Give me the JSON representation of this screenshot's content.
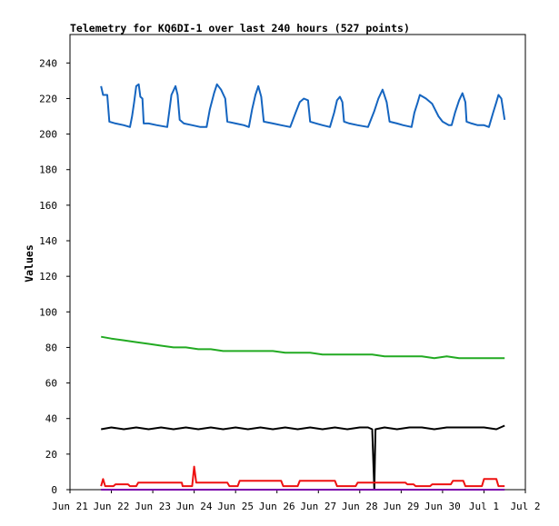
{
  "chart_data": {
    "type": "line",
    "title": "Telemetry for KQ6DI-1 over last 240 hours (527 points)",
    "xlabel": "",
    "ylabel": "Values",
    "xlim": [
      0,
      11
    ],
    "ylim": [
      0,
      256
    ],
    "x_ticks": [
      {
        "x": 0,
        "label": "Jun 21"
      },
      {
        "x": 1,
        "label": "Jun 22"
      },
      {
        "x": 2,
        "label": "Jun 23"
      },
      {
        "x": 3,
        "label": "Jun 24"
      },
      {
        "x": 4,
        "label": "Jun 25"
      },
      {
        "x": 5,
        "label": "Jun 26"
      },
      {
        "x": 6,
        "label": "Jun 27"
      },
      {
        "x": 7,
        "label": "Jun 28"
      },
      {
        "x": 8,
        "label": "Jun 29"
      },
      {
        "x": 9,
        "label": "Jun 30"
      },
      {
        "x": 10,
        "label": "Jul 1"
      },
      {
        "x": 11,
        "label": "Jul 2"
      }
    ],
    "y_ticks": [
      0,
      20,
      40,
      60,
      80,
      100,
      120,
      140,
      160,
      180,
      200,
      220,
      240
    ],
    "grid": false,
    "legend": "none",
    "series": [
      {
        "color": "#1565c0",
        "points": [
          [
            0.75,
            227
          ],
          [
            0.8,
            222
          ],
          [
            0.9,
            222
          ],
          [
            0.95,
            207
          ],
          [
            1.1,
            206
          ],
          [
            1.3,
            205
          ],
          [
            1.45,
            204
          ],
          [
            1.5,
            210
          ],
          [
            1.55,
            218
          ],
          [
            1.6,
            227
          ],
          [
            1.66,
            228
          ],
          [
            1.7,
            221
          ],
          [
            1.75,
            220
          ],
          [
            1.78,
            206
          ],
          [
            1.9,
            206
          ],
          [
            2.1,
            205
          ],
          [
            2.35,
            204
          ],
          [
            2.4,
            213
          ],
          [
            2.45,
            222
          ],
          [
            2.55,
            227
          ],
          [
            2.6,
            222
          ],
          [
            2.65,
            208
          ],
          [
            2.75,
            206
          ],
          [
            2.95,
            205
          ],
          [
            3.15,
            204
          ],
          [
            3.3,
            204
          ],
          [
            3.38,
            214
          ],
          [
            3.48,
            223
          ],
          [
            3.55,
            228
          ],
          [
            3.65,
            225
          ],
          [
            3.75,
            220
          ],
          [
            3.8,
            207
          ],
          [
            4.0,
            206
          ],
          [
            4.2,
            205
          ],
          [
            4.32,
            204
          ],
          [
            4.4,
            214
          ],
          [
            4.48,
            222
          ],
          [
            4.55,
            227
          ],
          [
            4.62,
            221
          ],
          [
            4.68,
            207
          ],
          [
            4.9,
            206
          ],
          [
            5.1,
            205
          ],
          [
            5.32,
            204
          ],
          [
            5.45,
            212
          ],
          [
            5.55,
            218
          ],
          [
            5.65,
            220
          ],
          [
            5.75,
            219
          ],
          [
            5.8,
            207
          ],
          [
            5.95,
            206
          ],
          [
            6.1,
            205
          ],
          [
            6.28,
            204
          ],
          [
            6.38,
            212
          ],
          [
            6.45,
            219
          ],
          [
            6.52,
            221
          ],
          [
            6.58,
            218
          ],
          [
            6.62,
            207
          ],
          [
            6.75,
            206
          ],
          [
            6.95,
            205
          ],
          [
            7.2,
            204
          ],
          [
            7.35,
            213
          ],
          [
            7.45,
            220
          ],
          [
            7.55,
            225
          ],
          [
            7.65,
            218
          ],
          [
            7.72,
            207
          ],
          [
            7.9,
            206
          ],
          [
            8.05,
            205
          ],
          [
            8.25,
            204
          ],
          [
            8.32,
            212
          ],
          [
            8.4,
            218
          ],
          [
            8.45,
            222
          ],
          [
            8.6,
            220
          ],
          [
            8.75,
            217
          ],
          [
            8.9,
            210
          ],
          [
            9.0,
            207
          ],
          [
            9.15,
            205
          ],
          [
            9.22,
            205
          ],
          [
            9.3,
            212
          ],
          [
            9.4,
            219
          ],
          [
            9.48,
            223
          ],
          [
            9.55,
            218
          ],
          [
            9.58,
            207
          ],
          [
            9.7,
            206
          ],
          [
            9.85,
            205
          ],
          [
            10.0,
            205
          ],
          [
            10.12,
            204
          ],
          [
            10.22,
            212
          ],
          [
            10.3,
            218
          ],
          [
            10.35,
            222
          ],
          [
            10.42,
            220
          ],
          [
            10.5,
            208
          ]
        ]
      },
      {
        "color": "#22aa22",
        "points": [
          [
            0.75,
            86
          ],
          [
            1.0,
            85
          ],
          [
            1.3,
            84
          ],
          [
            1.6,
            83
          ],
          [
            1.9,
            82
          ],
          [
            2.2,
            81
          ],
          [
            2.5,
            80
          ],
          [
            2.8,
            80
          ],
          [
            3.1,
            79
          ],
          [
            3.4,
            79
          ],
          [
            3.7,
            78
          ],
          [
            4.0,
            78
          ],
          [
            4.3,
            78
          ],
          [
            4.6,
            78
          ],
          [
            4.9,
            78
          ],
          [
            5.2,
            77
          ],
          [
            5.5,
            77
          ],
          [
            5.8,
            77
          ],
          [
            6.1,
            76
          ],
          [
            6.4,
            76
          ],
          [
            6.7,
            76
          ],
          [
            7.0,
            76
          ],
          [
            7.3,
            76
          ],
          [
            7.6,
            75
          ],
          [
            7.9,
            75
          ],
          [
            8.2,
            75
          ],
          [
            8.5,
            75
          ],
          [
            8.8,
            74
          ],
          [
            9.1,
            75
          ],
          [
            9.4,
            74
          ],
          [
            9.7,
            74
          ],
          [
            10.0,
            74
          ],
          [
            10.3,
            74
          ],
          [
            10.5,
            74
          ]
        ]
      },
      {
        "color": "#000000",
        "points": [
          [
            0.75,
            34
          ],
          [
            1.0,
            35
          ],
          [
            1.3,
            34
          ],
          [
            1.6,
            35
          ],
          [
            1.9,
            34
          ],
          [
            2.2,
            35
          ],
          [
            2.5,
            34
          ],
          [
            2.8,
            35
          ],
          [
            3.1,
            34
          ],
          [
            3.4,
            35
          ],
          [
            3.7,
            34
          ],
          [
            4.0,
            35
          ],
          [
            4.3,
            34
          ],
          [
            4.6,
            35
          ],
          [
            4.9,
            34
          ],
          [
            5.2,
            35
          ],
          [
            5.5,
            34
          ],
          [
            5.8,
            35
          ],
          [
            6.1,
            34
          ],
          [
            6.4,
            35
          ],
          [
            6.7,
            34
          ],
          [
            7.0,
            35
          ],
          [
            7.2,
            35
          ],
          [
            7.3,
            34
          ],
          [
            7.35,
            0
          ],
          [
            7.38,
            34
          ],
          [
            7.6,
            35
          ],
          [
            7.9,
            34
          ],
          [
            8.2,
            35
          ],
          [
            8.5,
            35
          ],
          [
            8.8,
            34
          ],
          [
            9.1,
            35
          ],
          [
            9.4,
            35
          ],
          [
            9.7,
            35
          ],
          [
            10.0,
            35
          ],
          [
            10.3,
            34
          ],
          [
            10.5,
            36
          ]
        ]
      },
      {
        "color": "#ee1111",
        "points": [
          [
            0.75,
            2
          ],
          [
            0.8,
            6
          ],
          [
            0.85,
            2
          ],
          [
            1.05,
            2
          ],
          [
            1.1,
            3
          ],
          [
            1.4,
            3
          ],
          [
            1.45,
            2
          ],
          [
            1.6,
            2
          ],
          [
            1.65,
            4
          ],
          [
            2.7,
            4
          ],
          [
            2.72,
            2
          ],
          [
            2.95,
            2
          ],
          [
            3.0,
            13
          ],
          [
            3.05,
            4
          ],
          [
            3.8,
            4
          ],
          [
            3.85,
            2
          ],
          [
            4.05,
            2
          ],
          [
            4.1,
            5
          ],
          [
            5.1,
            5
          ],
          [
            5.15,
            2
          ],
          [
            5.5,
            2
          ],
          [
            5.55,
            5
          ],
          [
            6.4,
            5
          ],
          [
            6.45,
            2
          ],
          [
            6.9,
            2
          ],
          [
            6.95,
            4
          ],
          [
            8.1,
            4
          ],
          [
            8.15,
            3
          ],
          [
            8.3,
            3
          ],
          [
            8.35,
            2
          ],
          [
            8.7,
            2
          ],
          [
            8.75,
            3
          ],
          [
            9.2,
            3
          ],
          [
            9.25,
            5
          ],
          [
            9.5,
            5
          ],
          [
            9.55,
            2
          ],
          [
            9.95,
            2
          ],
          [
            10.0,
            6
          ],
          [
            10.3,
            6
          ],
          [
            10.35,
            2
          ],
          [
            10.5,
            2
          ]
        ]
      },
      {
        "color": "#7700aa",
        "points": [
          [
            0.75,
            0
          ],
          [
            10.5,
            0
          ]
        ]
      }
    ]
  }
}
